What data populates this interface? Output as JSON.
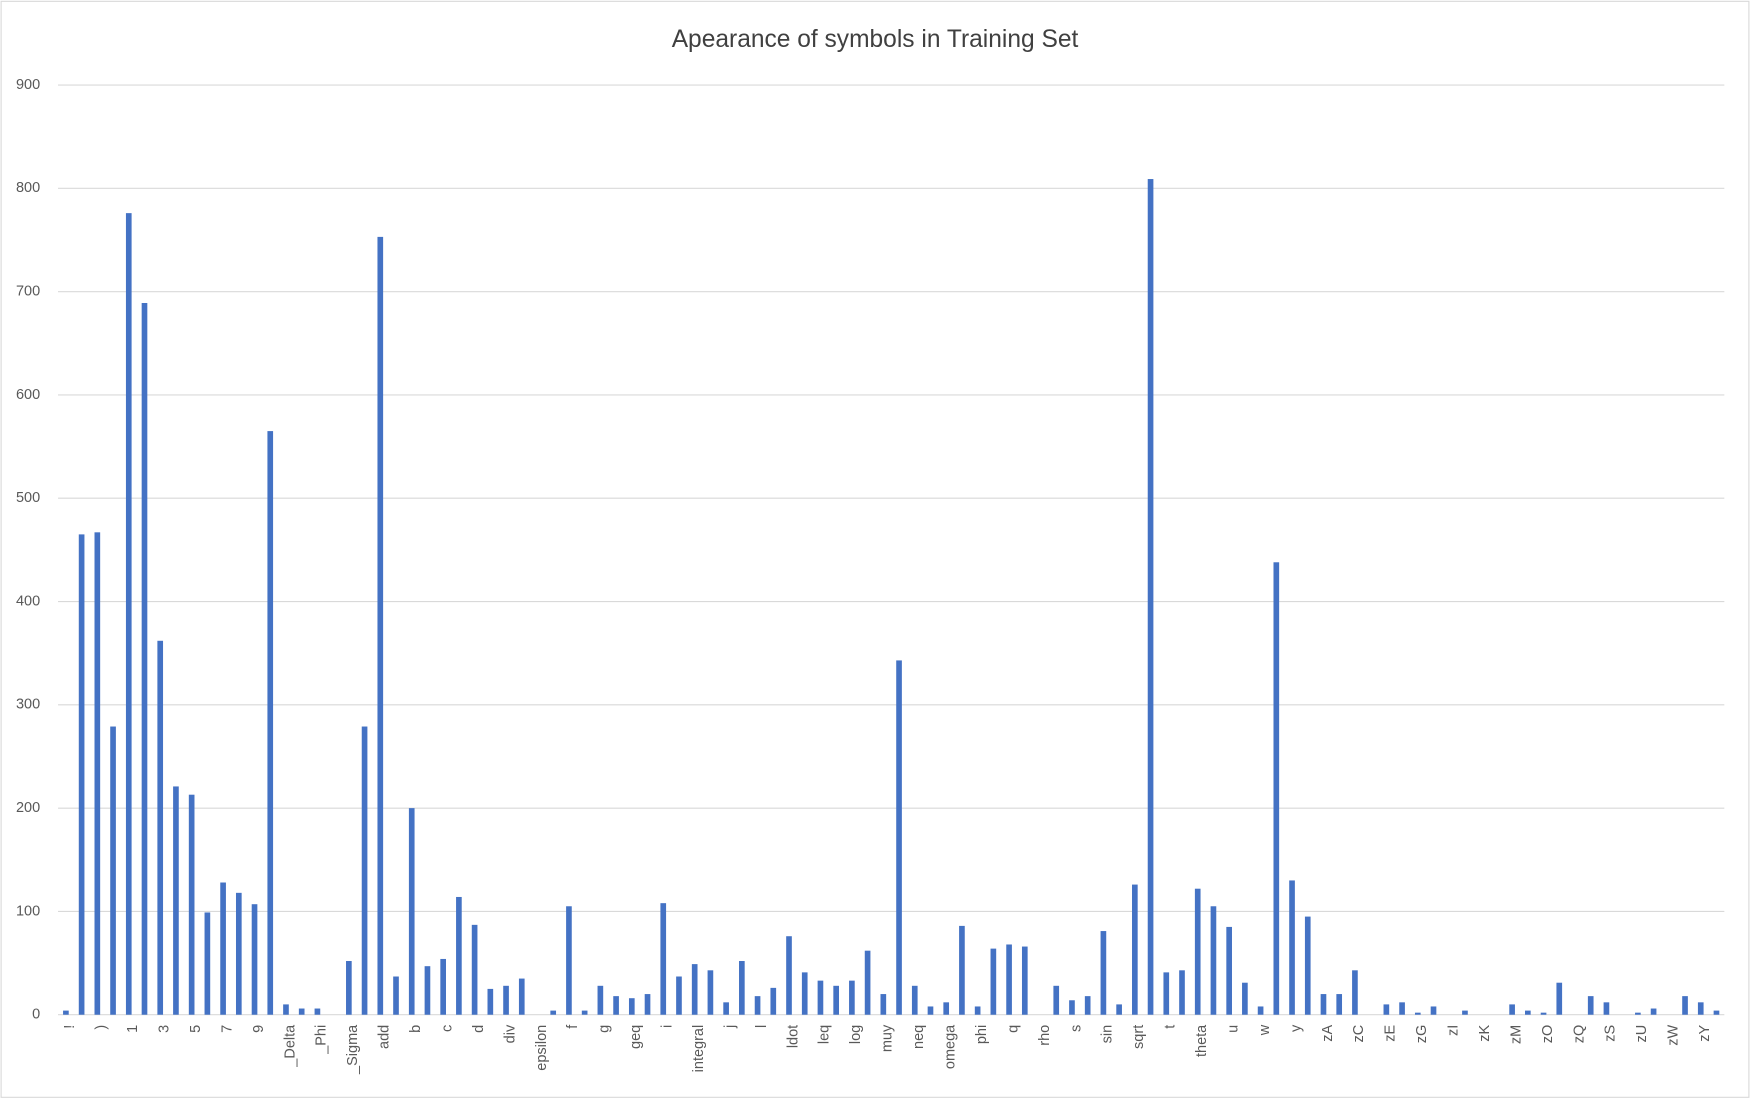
{
  "chart_data": {
    "type": "bar",
    "title": "Apearance of symbols in Training Set",
    "categories": [
      "!",
      null,
      ")",
      null,
      "1",
      null,
      "3",
      null,
      "5",
      null,
      "7",
      null,
      "9",
      null,
      "_Delta",
      null,
      "_Phi",
      null,
      "_Sigma",
      null,
      "add",
      null,
      "b",
      null,
      "c",
      null,
      "d",
      null,
      "div",
      null,
      "epsilon",
      null,
      "f",
      null,
      "g",
      null,
      "geq",
      null,
      "i",
      null,
      "integral",
      null,
      "j",
      null,
      "l",
      null,
      "ldot",
      null,
      "leq",
      null,
      "log",
      null,
      "muy",
      null,
      "neq",
      null,
      "omega",
      null,
      "phi",
      null,
      "q",
      null,
      "rho",
      null,
      "s",
      null,
      "sin",
      null,
      "sqrt",
      null,
      "t",
      null,
      "theta",
      null,
      "u",
      null,
      "w",
      null,
      "y",
      null,
      "zA",
      null,
      "zC",
      null,
      "zE",
      null,
      "zG",
      null,
      "zI",
      null,
      "zK",
      null,
      "zM",
      null,
      "zO",
      null,
      "zQ",
      null,
      "zS",
      null,
      "zU",
      null,
      "zW",
      null,
      "zY",
      null
    ],
    "values": [
      4,
      465,
      467,
      279,
      776,
      689,
      362,
      221,
      213,
      99,
      128,
      118,
      107,
      565,
      10,
      6,
      6,
      0,
      52,
      279,
      753,
      37,
      200,
      47,
      54,
      114,
      87,
      25,
      28,
      35,
      0,
      4,
      105,
      4,
      28,
      18,
      16,
      20,
      108,
      37,
      49,
      43,
      12,
      52,
      18,
      26,
      76,
      41,
      33,
      28,
      33,
      62,
      20,
      343,
      28,
      8,
      12,
      86,
      8,
      64,
      68,
      66,
      0,
      28,
      14,
      18,
      81,
      10,
      126,
      809,
      41,
      43,
      122,
      105,
      85,
      31,
      8,
      438,
      130,
      95,
      20,
      20,
      43,
      0,
      10,
      12,
      2,
      8,
      0,
      4,
      0,
      0,
      10,
      4,
      2,
      31,
      0,
      18,
      12,
      0,
      2,
      6,
      0,
      18,
      12,
      4
    ],
    "color": "#4472c4",
    "ylim": [
      0,
      900
    ],
    "yticks": [
      0,
      100,
      200,
      300,
      400,
      500,
      600,
      700,
      800,
      900
    ],
    "grid": true
  }
}
